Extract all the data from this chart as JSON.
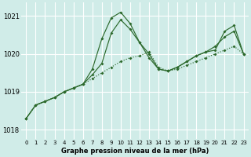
{
  "title": "Graphe pression niveau de la mer (hPa)",
  "bg_color": "#d0ece8",
  "grid_color": "#ffffff",
  "line_color": "#2d6a2d",
  "ylim": [
    1017.75,
    1021.35
  ],
  "yticks": [
    1018,
    1019,
    1020,
    1021
  ],
  "xlim": [
    -0.5,
    23.5
  ],
  "xticks": [
    0,
    1,
    2,
    3,
    4,
    5,
    6,
    7,
    8,
    9,
    10,
    11,
    12,
    13,
    14,
    15,
    16,
    17,
    18,
    19,
    20,
    21,
    22,
    23
  ],
  "series_spike": [
    1018.3,
    1018.65,
    1018.75,
    1018.85,
    1019.0,
    1019.1,
    1019.2,
    1019.6,
    1020.4,
    1020.95,
    1021.1,
    1020.8,
    1020.3,
    1020.0,
    1019.6,
    1019.55,
    1019.65,
    1019.8,
    1019.95,
    1020.05,
    1020.1,
    1020.6,
    1020.75,
    1020.0
  ],
  "series_mid": [
    1018.3,
    1018.65,
    1018.75,
    1018.85,
    1019.0,
    1019.1,
    1019.2,
    1019.45,
    1019.75,
    1020.55,
    1020.9,
    1020.65,
    1020.3,
    1019.9,
    1019.6,
    1019.55,
    1019.65,
    1019.8,
    1019.95,
    1020.05,
    1020.2,
    1020.45,
    1020.6,
    1020.0
  ],
  "series_low": [
    1018.3,
    1018.65,
    1018.75,
    1018.85,
    1019.0,
    1019.1,
    1019.2,
    1019.35,
    1019.5,
    1019.65,
    1019.8,
    1019.9,
    1019.95,
    1020.05,
    1019.65,
    1019.55,
    1019.6,
    1019.7,
    1019.8,
    1019.9,
    1020.0,
    1020.1,
    1020.2,
    1020.0
  ]
}
